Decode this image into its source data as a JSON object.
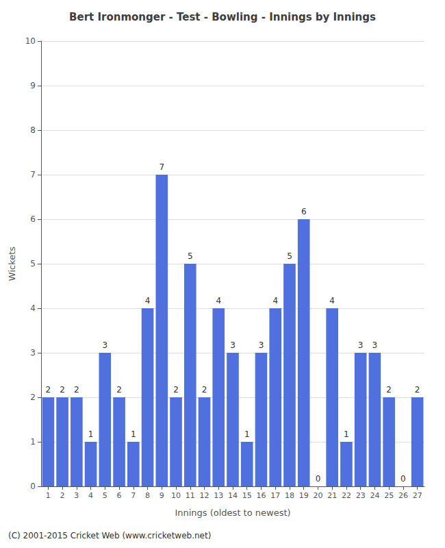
{
  "chart_data": {
    "type": "bar",
    "title": "Bert Ironmonger - Test - Bowling - Innings by Innings",
    "xlabel": "Innings (oldest to newest)",
    "ylabel": "Wickets",
    "x": [
      1,
      2,
      3,
      4,
      5,
      6,
      7,
      8,
      9,
      10,
      11,
      12,
      13,
      14,
      15,
      16,
      17,
      18,
      19,
      20,
      21,
      22,
      23,
      24,
      25,
      26,
      27
    ],
    "values": [
      2,
      2,
      2,
      1,
      3,
      2,
      1,
      4,
      7,
      2,
      5,
      2,
      4,
      3,
      1,
      3,
      4,
      5,
      6,
      0,
      4,
      1,
      3,
      3,
      2,
      0,
      2
    ],
    "xlim": [
      0.5,
      27.5
    ],
    "xticks": [
      1,
      2,
      3,
      4,
      5,
      6,
      7,
      8,
      9,
      10,
      11,
      12,
      13,
      14,
      15,
      16,
      17,
      18,
      19,
      20,
      21,
      22,
      23,
      24,
      25,
      26,
      27
    ],
    "ylim": [
      0,
      10
    ],
    "yticks": [
      0,
      1,
      2,
      3,
      4,
      5,
      6,
      7,
      8,
      9,
      10
    ],
    "grid": true,
    "data_labels": true,
    "footer": "(C) 2001-2015 Cricket Web (www.cricketweb.net)"
  }
}
